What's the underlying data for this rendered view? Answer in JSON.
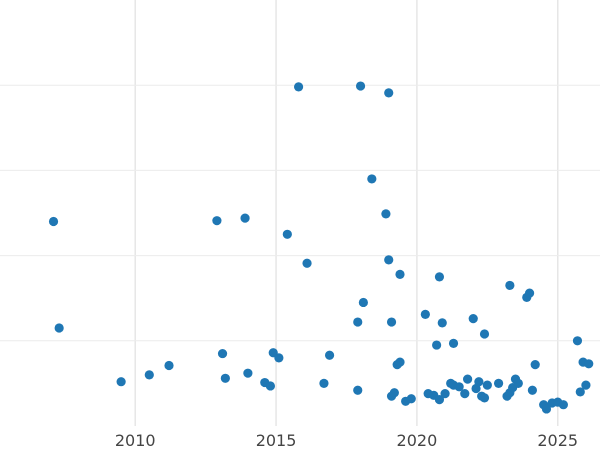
{
  "chart_data": {
    "type": "scatter",
    "title": "",
    "xlabel": "",
    "ylabel": "",
    "x_ticks": [
      "2010",
      "2015",
      "2020",
      "2025"
    ],
    "x_tick_values": [
      2010,
      2015,
      2020,
      2025
    ],
    "xlim": [
      2005.2,
      2026.5
    ],
    "ylim": [
      0,
      5
    ],
    "y_gridlines": [
      1,
      2,
      3,
      4
    ],
    "y_tick_labels_visible": false,
    "grid": true,
    "marker_color": "#1f77b4",
    "series": [
      {
        "x": [
          2007.1,
          2007.3,
          2009.5,
          2010.5,
          2011.2,
          2012.9,
          2013.1,
          2013.2,
          2013.9,
          2014.0,
          2014.6,
          2014.8,
          2014.9,
          2015.1,
          2015.4,
          2015.8,
          2016.1,
          2016.7,
          2016.9,
          2017.9,
          2017.9,
          2018.0,
          2018.1,
          2018.4,
          2018.9,
          2019.0,
          2019.0,
          2019.1,
          2019.1,
          2019.2,
          2019.3,
          2019.4,
          2019.4,
          2019.6,
          2019.8,
          2020.3,
          2020.4,
          2020.6,
          2020.7,
          2020.8,
          2020.8,
          2020.9,
          2021.0,
          2021.2,
          2021.3,
          2021.3,
          2021.5,
          2021.7,
          2021.8,
          2022.0,
          2022.1,
          2022.2,
          2022.3,
          2022.4,
          2022.4,
          2022.5,
          2022.9,
          2023.2,
          2023.3,
          2023.3,
          2023.4,
          2023.5,
          2023.6,
          2023.9,
          2024.0,
          2024.1,
          2024.2,
          2024.5,
          2024.6,
          2024.8,
          2025.0,
          2025.2,
          2025.7,
          2025.8,
          2025.9,
          2026.0,
          2026.1
        ],
        "y": [
          2.4,
          1.15,
          0.52,
          0.6,
          0.71,
          2.41,
          0.85,
          0.56,
          2.44,
          0.62,
          0.51,
          0.47,
          0.86,
          0.8,
          2.25,
          3.98,
          1.91,
          0.5,
          0.83,
          0.42,
          1.22,
          3.99,
          1.45,
          2.9,
          2.49,
          3.91,
          1.95,
          1.22,
          0.35,
          0.39,
          0.72,
          0.75,
          1.78,
          0.29,
          0.32,
          1.31,
          0.38,
          0.36,
          0.95,
          0.31,
          1.75,
          1.21,
          0.38,
          0.5,
          0.48,
          0.97,
          0.46,
          0.38,
          0.55,
          1.26,
          0.44,
          0.52,
          0.35,
          1.08,
          0.33,
          0.48,
          0.5,
          0.35,
          0.39,
          1.65,
          0.45,
          0.55,
          0.5,
          1.51,
          1.56,
          0.42,
          0.72,
          0.25,
          0.2,
          0.27,
          0.28,
          0.25,
          1.0,
          0.4,
          0.75,
          0.48,
          0.73
        ]
      }
    ]
  }
}
